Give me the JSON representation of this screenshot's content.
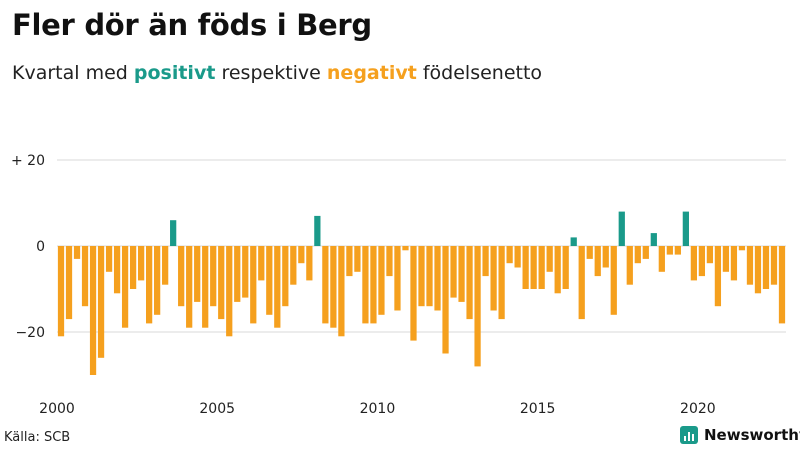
{
  "header": {
    "title": "Fler dör än föds i Berg",
    "subtitle_before": "Kvartal med ",
    "subtitle_positive": "positivt",
    "subtitle_middle": " respektive ",
    "subtitle_negative": "negativt",
    "subtitle_after": " födelsenetto"
  },
  "footer": {
    "source": "Källa: SCB",
    "brand": "Newsworthy"
  },
  "colors": {
    "positive": "#1a9a8a",
    "negative": "#f5a01e",
    "axis_text": "#222222",
    "grid": "#d9d9d9",
    "brand": "#1a9a8a"
  },
  "chart_data": {
    "type": "bar",
    "title": "Fler dör än föds i Berg",
    "subtitle": "Kvartal med positivt respektive negativt födelsenetto",
    "xlabel": "",
    "ylabel": "",
    "start_year": 2000,
    "periods_per_year": 4,
    "ylim": [
      -32,
      22
    ],
    "yticks": [
      {
        "value": 20,
        "label": "+ 20"
      },
      {
        "value": 0,
        "label": "0"
      },
      {
        "value": -20,
        "label": "−20"
      }
    ],
    "xticks": [
      {
        "index": 0,
        "label": "2000"
      },
      {
        "index": 20,
        "label": "2005"
      },
      {
        "index": 40,
        "label": "2010"
      },
      {
        "index": 60,
        "label": "2015"
      },
      {
        "index": 80,
        "label": "2020"
      }
    ],
    "grid": true,
    "values": [
      -21,
      -17,
      -3,
      -14,
      -30,
      -26,
      -6,
      -11,
      -19,
      -10,
      -8,
      -18,
      -16,
      -9,
      6,
      -14,
      -19,
      -13,
      -19,
      -14,
      -17,
      -21,
      -13,
      -12,
      -18,
      -8,
      -16,
      -19,
      -14,
      -9,
      -4,
      -8,
      7,
      -18,
      -19,
      -21,
      -7,
      -6,
      -18,
      -18,
      -16,
      -7,
      -15,
      -1,
      -22,
      -14,
      -14,
      -15,
      -25,
      -12,
      -13,
      -17,
      -28,
      -7,
      -15,
      -17,
      -4,
      -5,
      -10,
      -10,
      -10,
      -6,
      -11,
      -10,
      2,
      -17,
      -3,
      -7,
      -5,
      -16,
      8,
      -9,
      -4,
      -3,
      3,
      -6,
      -2,
      -2,
      8,
      -8,
      -7,
      -4,
      -14,
      -6,
      -8,
      -1,
      -9,
      -11,
      -10,
      -9,
      -18
    ]
  }
}
